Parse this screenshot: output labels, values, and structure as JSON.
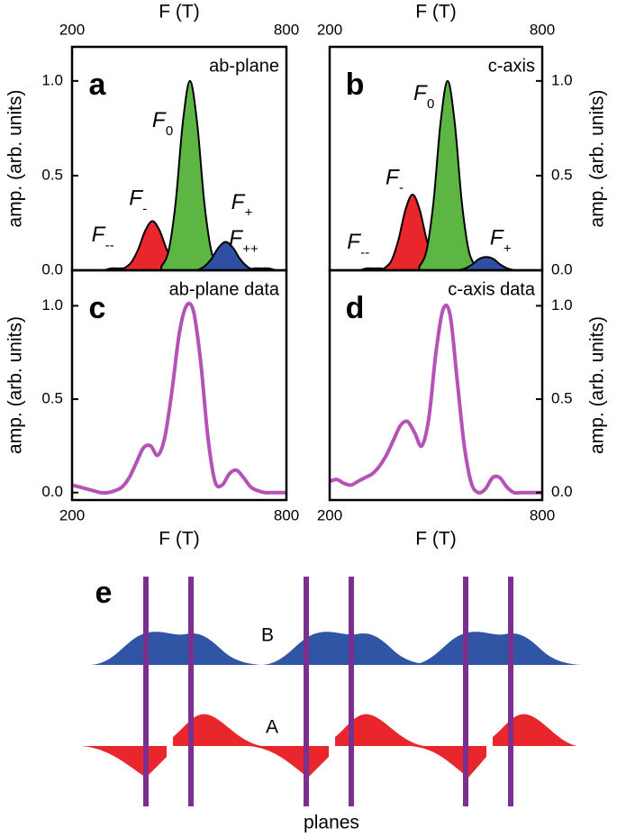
{
  "chart_data": [
    {
      "type": "area",
      "panel": "a",
      "annotation": "ab-plane",
      "xlabel": "F (T)",
      "ylabel": "amp. (arb. units)",
      "xlim": [
        200,
        800
      ],
      "xticks": [
        200,
        800
      ],
      "ylim": [
        0,
        1.18
      ],
      "yticks": [
        {
          "value": 0,
          "label": "0.0"
        },
        {
          "value": 0.5,
          "label": "0.5"
        },
        {
          "value": 1,
          "label": "1.0"
        }
      ],
      "xaxis_position": "top",
      "yaxis_position": "left",
      "series": [
        {
          "label": {
            "symbol": "F",
            "sub": "--"
          },
          "color": "#8a2a2a",
          "x": [
            290,
            310,
            330,
            350,
            370
          ],
          "values": [
            0,
            0.01,
            0.01,
            0.01,
            0
          ]
        },
        {
          "label": {
            "symbol": "F",
            "sub": "-"
          },
          "color": "#e8262b",
          "x": [
            345,
            365,
            385,
            405,
            425,
            445,
            465,
            485,
            505
          ],
          "values": [
            0.01,
            0.04,
            0.11,
            0.21,
            0.26,
            0.21,
            0.11,
            0.04,
            0.01
          ]
        },
        {
          "label": {
            "symbol": "F",
            "sub": "0"
          },
          "color": "#5db543",
          "x": [
            450,
            470,
            490,
            510,
            530,
            550,
            570,
            590,
            610
          ],
          "values": [
            0.02,
            0.1,
            0.36,
            0.78,
            1.0,
            0.78,
            0.36,
            0.1,
            0.02
          ]
        },
        {
          "label": {
            "symbol": "F",
            "sub": "+"
          },
          "color": "#2f4fa2",
          "x": [
            550,
            570,
            590,
            610,
            630,
            650,
            670,
            690,
            710
          ],
          "values": [
            0,
            0.02,
            0.06,
            0.12,
            0.15,
            0.12,
            0.06,
            0.02,
            0
          ]
        },
        {
          "label": {
            "symbol": "F",
            "sub": "++"
          },
          "color": "#2f4fa2",
          "x": [
            690,
            710,
            730,
            750,
            770
          ],
          "values": [
            0,
            0.01,
            0.01,
            0.01,
            0
          ]
        }
      ]
    },
    {
      "type": "area",
      "panel": "b",
      "annotation": "c-axis",
      "xlabel": "F (T)",
      "ylabel": "amp. (arb. units)",
      "xlim": [
        200,
        800
      ],
      "xticks": [
        200,
        800
      ],
      "ylim": [
        0,
        1.18
      ],
      "yticks": [
        {
          "value": 0,
          "label": "0.0"
        },
        {
          "value": 0.5,
          "label": "0.5"
        },
        {
          "value": 1,
          "label": "1.0"
        }
      ],
      "xaxis_position": "top",
      "yaxis_position": "right",
      "series": [
        {
          "label": {
            "symbol": "F",
            "sub": "--"
          },
          "color": "#8a2a2a",
          "x": [
            285,
            305,
            325,
            345,
            365
          ],
          "values": [
            0,
            0.01,
            0.01,
            0.01,
            0
          ]
        },
        {
          "label": {
            "symbol": "F",
            "sub": "-"
          },
          "color": "#e8262b",
          "x": [
            354,
            374,
            394,
            414,
            434,
            454,
            474,
            494,
            514
          ],
          "values": [
            0.01,
            0.05,
            0.16,
            0.32,
            0.4,
            0.32,
            0.16,
            0.05,
            0.01
          ]
        },
        {
          "label": {
            "symbol": "F",
            "sub": "0"
          },
          "color": "#5db543",
          "x": [
            453,
            473,
            493,
            513,
            533,
            553,
            573,
            593,
            613
          ],
          "values": [
            0.02,
            0.1,
            0.36,
            0.78,
            1.0,
            0.78,
            0.36,
            0.1,
            0.02
          ]
        },
        {
          "label": {
            "symbol": "F",
            "sub": "+"
          },
          "color": "#2f4fa2",
          "x": [
            562,
            582,
            602,
            622,
            642,
            662,
            682,
            702,
            722
          ],
          "values": [
            0,
            0.01,
            0.03,
            0.06,
            0.07,
            0.06,
            0.03,
            0.01,
            0
          ]
        }
      ]
    },
    {
      "type": "line",
      "panel": "c",
      "annotation": "ab-plane data",
      "xlabel": "F (T)",
      "ylabel": "amp. (arb. units)",
      "xlim": [
        200,
        800
      ],
      "xticks": [
        200,
        800
      ],
      "ylim": [
        -0.04,
        1.19
      ],
      "yticks": [
        {
          "value": 0,
          "label": "0.0"
        },
        {
          "value": 0.5,
          "label": "0.5"
        },
        {
          "value": 1,
          "label": "1.0"
        }
      ],
      "xaxis_position": "bottom",
      "yaxis_position": "left",
      "color": "#b552b8",
      "x": [
        200,
        220,
        240,
        260,
        280,
        300,
        320,
        340,
        360,
        380,
        400,
        420,
        440,
        460,
        480,
        500,
        520,
        540,
        560,
        580,
        600,
        620,
        640,
        660,
        680,
        700,
        720,
        740,
        760,
        780,
        800
      ],
      "values": [
        0.04,
        0.03,
        0.02,
        0.01,
        0,
        0,
        0.01,
        0.03,
        0.08,
        0.16,
        0.24,
        0.25,
        0.2,
        0.3,
        0.55,
        0.85,
        1.0,
        0.97,
        0.7,
        0.3,
        0.06,
        0.04,
        0.1,
        0.12,
        0.08,
        0.03,
        0.01,
        0,
        0,
        0,
        0
      ]
    },
    {
      "type": "line",
      "panel": "d",
      "annotation": "c-axis data",
      "xlabel": "F (T)",
      "ylabel": "amp. (arb. units)",
      "xlim": [
        200,
        800
      ],
      "xticks": [
        200,
        800
      ],
      "ylim": [
        -0.04,
        1.19
      ],
      "yticks": [
        {
          "value": 0,
          "label": "0.0"
        },
        {
          "value": 0.5,
          "label": "0.5"
        },
        {
          "value": 1,
          "label": "1.0"
        }
      ],
      "xaxis_position": "bottom",
      "yaxis_position": "right",
      "color": "#b552b8",
      "x": [
        200,
        220,
        240,
        260,
        280,
        300,
        320,
        340,
        360,
        380,
        400,
        420,
        440,
        460,
        480,
        500,
        520,
        540,
        560,
        580,
        600,
        620,
        640,
        660,
        680,
        700,
        720,
        740,
        760,
        780,
        800
      ],
      "values": [
        0.06,
        0.07,
        0.05,
        0.04,
        0.06,
        0.08,
        0.1,
        0.14,
        0.2,
        0.28,
        0.36,
        0.38,
        0.32,
        0.25,
        0.4,
        0.75,
        0.98,
        0.95,
        0.6,
        0.25,
        0.05,
        0,
        0.02,
        0.08,
        0.08,
        0.03,
        0,
        0,
        0,
        0,
        0
      ]
    }
  ],
  "panel_e": {
    "label": "e",
    "upper_wave": "B",
    "lower_wave": "A",
    "caption": "planes"
  }
}
